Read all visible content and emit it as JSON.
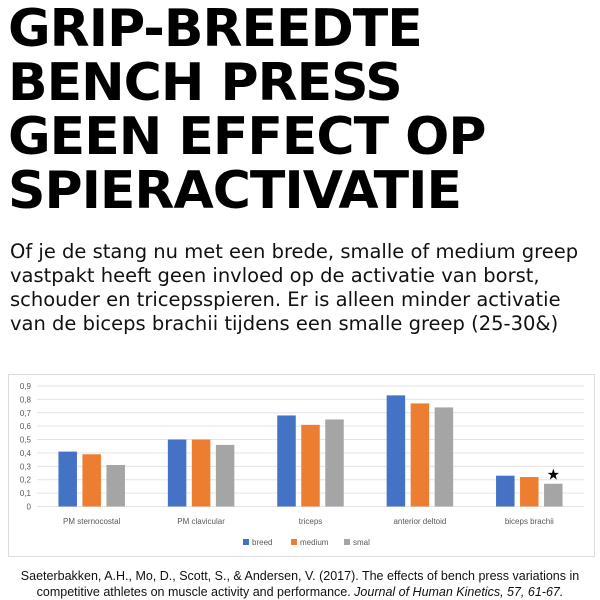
{
  "title_lines": [
    "GRIP-BREEDTE",
    "BENCH PRESS",
    "GEEN EFFECT OP",
    "SPIERACTIVATIE"
  ],
  "subtitle": "Of je de stang nu met een brede, smalle of medium greep vastpakt heeft geen invloed op de activatie van borst, schouder en tricepsspieren. Er is alleen minder activatie van de biceps brachii tijdens een smalle greep (25-30&)",
  "chart_data": {
    "type": "bar",
    "categories": [
      "PM sternocostal",
      "PM clavicular",
      "triceps",
      "anterior deltoid",
      "biceps brachii"
    ],
    "series": [
      {
        "name": "breed",
        "color": "#4472c4",
        "values": [
          0.41,
          0.5,
          0.68,
          0.83,
          0.23
        ]
      },
      {
        "name": "medium",
        "color": "#ed7d31",
        "values": [
          0.39,
          0.5,
          0.61,
          0.77,
          0.22
        ]
      },
      {
        "name": "smal",
        "color": "#a5a5a5",
        "values": [
          0.31,
          0.46,
          0.65,
          0.74,
          0.17
        ]
      }
    ],
    "yticks": [
      "0",
      "0,1",
      "0,2",
      "0,3",
      "0,4",
      "0,5",
      "0,6",
      "0,7",
      "0,8",
      "0,9"
    ],
    "ylim": [
      0,
      0.9
    ],
    "grid": true,
    "legend": "bottom",
    "annotation": {
      "text": "★",
      "category": "biceps brachii",
      "series": "smal"
    }
  },
  "citation": {
    "plain": "Saeterbakken, A.H., Mo, D., Scott, S., & Andersen, V. (2017). The effects of bench press variations in competitive athletes on muscle activity and performance. ",
    "italic": "Journal of Human Kinetics, 57, 61-67."
  }
}
